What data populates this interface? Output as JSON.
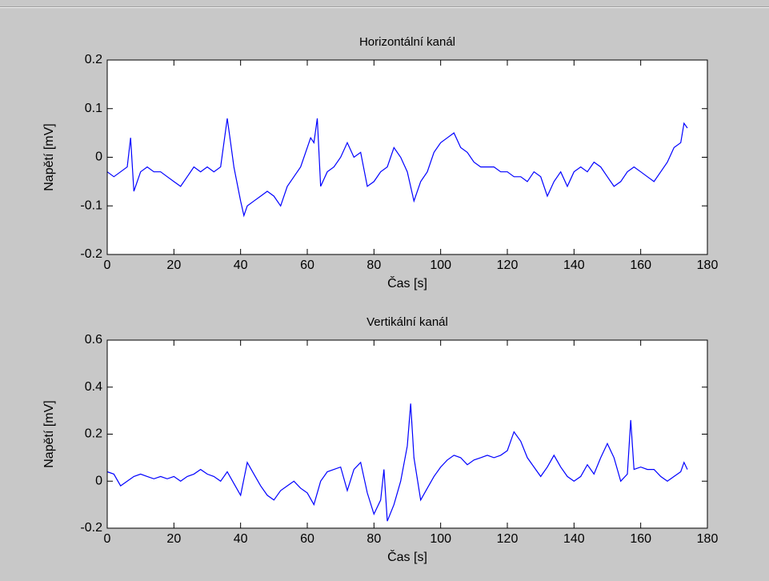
{
  "chart_data": [
    {
      "type": "line",
      "title": "Horizontální kanál",
      "xlabel": "Čas [s]",
      "ylabel": "Napětí [mV]",
      "color": "#0000ff",
      "xlim": [
        0,
        180
      ],
      "xticks": [
        0,
        20,
        40,
        60,
        80,
        100,
        120,
        140,
        160,
        180
      ],
      "ylim": [
        -0.2,
        0.2
      ],
      "yticks": [
        -0.2,
        -0.1,
        0,
        0.1,
        0.2
      ],
      "x": [
        0,
        2,
        4,
        6,
        7,
        8,
        10,
        12,
        14,
        16,
        18,
        20,
        22,
        24,
        26,
        28,
        30,
        32,
        34,
        36,
        37,
        38,
        40,
        41,
        42,
        44,
        46,
        48,
        50,
        52,
        54,
        56,
        58,
        60,
        61,
        62,
        63,
        64,
        66,
        68,
        70,
        72,
        74,
        76,
        78,
        80,
        82,
        84,
        86,
        88,
        90,
        92,
        94,
        96,
        98,
        100,
        102,
        104,
        106,
        108,
        110,
        112,
        114,
        116,
        118,
        120,
        122,
        124,
        126,
        128,
        130,
        132,
        134,
        136,
        138,
        140,
        142,
        144,
        146,
        148,
        150,
        152,
        154,
        156,
        158,
        160,
        162,
        164,
        166,
        168,
        170,
        172,
        173,
        174
      ],
      "values": [
        -0.03,
        -0.04,
        -0.03,
        -0.02,
        0.04,
        -0.07,
        -0.03,
        -0.02,
        -0.03,
        -0.03,
        -0.04,
        -0.05,
        -0.06,
        -0.04,
        -0.02,
        -0.03,
        -0.02,
        -0.03,
        -0.02,
        0.08,
        0.03,
        -0.02,
        -0.09,
        -0.12,
        -0.1,
        -0.09,
        -0.08,
        -0.07,
        -0.08,
        -0.1,
        -0.06,
        -0.04,
        -0.02,
        0.02,
        0.04,
        0.03,
        0.08,
        -0.06,
        -0.03,
        -0.02,
        0.0,
        0.03,
        0.0,
        0.01,
        -0.06,
        -0.05,
        -0.03,
        -0.02,
        0.02,
        0.0,
        -0.03,
        -0.09,
        -0.05,
        -0.03,
        0.01,
        0.03,
        0.04,
        0.05,
        0.02,
        0.01,
        -0.01,
        -0.02,
        -0.02,
        -0.02,
        -0.03,
        -0.03,
        -0.04,
        -0.04,
        -0.05,
        -0.03,
        -0.04,
        -0.08,
        -0.05,
        -0.03,
        -0.06,
        -0.03,
        -0.02,
        -0.03,
        -0.01,
        -0.02,
        -0.04,
        -0.06,
        -0.05,
        -0.03,
        -0.02,
        -0.03,
        -0.04,
        -0.05,
        -0.03,
        -0.01,
        0.02,
        0.03,
        0.07,
        0.06
      ]
    },
    {
      "type": "line",
      "title": "Vertikální kanál",
      "xlabel": "Čas [s]",
      "ylabel": "Napětí [mV]",
      "color": "#0000ff",
      "xlim": [
        0,
        180
      ],
      "xticks": [
        0,
        20,
        40,
        60,
        80,
        100,
        120,
        140,
        160,
        180
      ],
      "ylim": [
        -0.2,
        0.6
      ],
      "yticks": [
        -0.2,
        0,
        0.2,
        0.4,
        0.6
      ],
      "x": [
        0,
        2,
        4,
        6,
        8,
        10,
        12,
        14,
        16,
        18,
        20,
        22,
        24,
        26,
        28,
        30,
        32,
        34,
        36,
        38,
        40,
        42,
        44,
        46,
        48,
        50,
        52,
        54,
        56,
        58,
        60,
        62,
        64,
        66,
        68,
        70,
        72,
        74,
        76,
        78,
        80,
        82,
        83,
        84,
        86,
        88,
        90,
        91,
        92,
        94,
        96,
        98,
        100,
        102,
        104,
        106,
        108,
        110,
        112,
        114,
        116,
        118,
        120,
        122,
        124,
        126,
        128,
        130,
        132,
        134,
        136,
        138,
        140,
        142,
        144,
        146,
        148,
        150,
        152,
        154,
        156,
        157,
        158,
        160,
        162,
        164,
        166,
        168,
        170,
        172,
        173,
        174
      ],
      "values": [
        0.04,
        0.03,
        -0.02,
        0.0,
        0.02,
        0.03,
        0.02,
        0.01,
        0.02,
        0.01,
        0.02,
        0.0,
        0.02,
        0.03,
        0.05,
        0.03,
        0.02,
        0.0,
        0.04,
        -0.01,
        -0.06,
        0.08,
        0.03,
        -0.02,
        -0.06,
        -0.08,
        -0.04,
        -0.02,
        0.0,
        -0.03,
        -0.05,
        -0.1,
        0.0,
        0.04,
        0.05,
        0.06,
        -0.04,
        0.05,
        0.08,
        -0.05,
        -0.14,
        -0.08,
        0.05,
        -0.17,
        -0.1,
        0.0,
        0.15,
        0.33,
        0.1,
        -0.08,
        -0.03,
        0.02,
        0.06,
        0.09,
        0.11,
        0.1,
        0.07,
        0.09,
        0.1,
        0.11,
        0.1,
        0.11,
        0.13,
        0.21,
        0.17,
        0.1,
        0.06,
        0.02,
        0.06,
        0.11,
        0.06,
        0.02,
        0.0,
        0.02,
        0.07,
        0.03,
        0.1,
        0.16,
        0.1,
        0.0,
        0.03,
        0.26,
        0.05,
        0.06,
        0.05,
        0.05,
        0.02,
        0.0,
        0.02,
        0.04,
        0.08,
        0.05
      ]
    }
  ]
}
